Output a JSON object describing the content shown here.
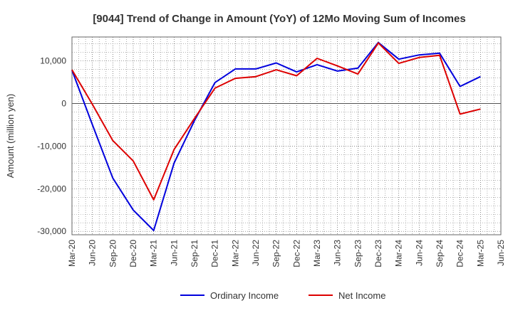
{
  "chart_data": {
    "type": "line",
    "title": "[9044]  Trend of Change in Amount (YoY) of 12Mo Moving Sum of Incomes",
    "xlabel": "",
    "ylabel": "Amount (million yen)",
    "x_tick_labels": [
      "Mar-20",
      "Jun-20",
      "Sep-20",
      "Dec-20",
      "Mar-21",
      "Jun-21",
      "Sep-21",
      "Dec-21",
      "Mar-22",
      "Jun-22",
      "Sep-22",
      "Dec-22",
      "Mar-23",
      "Jun-23",
      "Sep-23",
      "Dec-23",
      "Mar-24",
      "Jun-24",
      "Sep-24",
      "Dec-24",
      "Mar-25",
      "Jun-25"
    ],
    "y_ticks": [
      10000,
      0,
      -10000,
      -20000,
      -30000
    ],
    "y_tick_labels": [
      "10,000",
      "0",
      "-10,000",
      "-20,000",
      "-30,000"
    ],
    "ylim": [
      -30800,
      15600
    ],
    "grid": true,
    "legend_position": "bottom-center",
    "series": [
      {
        "name": "Ordinary Income",
        "color": "#0000dd",
        "values": [
          7800,
          -5000,
          -17500,
          -25000,
          -29800,
          -14000,
          -4000,
          4900,
          8100,
          8100,
          9500,
          7400,
          9100,
          7600,
          8300,
          14300,
          10400,
          11400,
          11800,
          4000,
          6300
        ]
      },
      {
        "name": "Net Income",
        "color": "#dd0000",
        "values": [
          7900,
          -200,
          -8700,
          -13500,
          -22600,
          -10800,
          -3500,
          3600,
          5900,
          6300,
          7900,
          6500,
          10600,
          8800,
          6900,
          14200,
          9400,
          10800,
          11300,
          -2500,
          -1300
        ]
      }
    ]
  }
}
